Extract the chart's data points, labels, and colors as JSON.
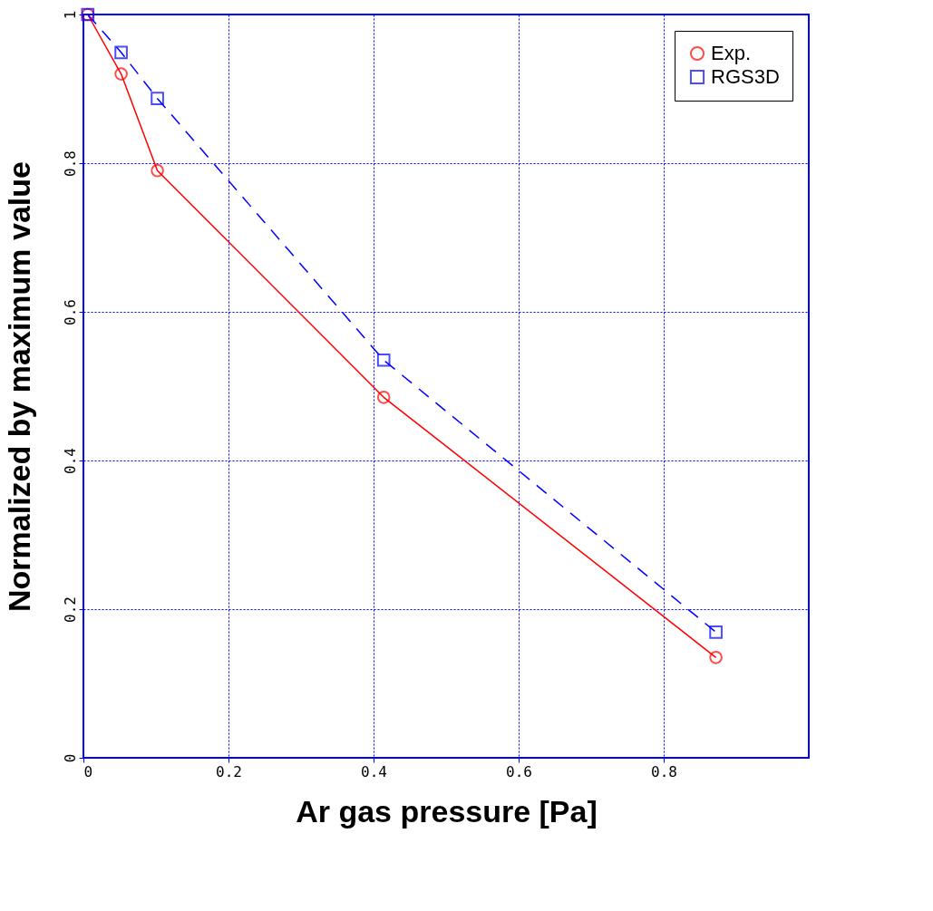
{
  "chart_data": {
    "type": "line",
    "xlabel": "Ar gas pressure [Pa]",
    "ylabel": "Normalized by maximum value",
    "xlim": [
      0,
      1
    ],
    "ylim": [
      0,
      1
    ],
    "xticks": [
      0,
      0.2,
      0.4,
      0.6,
      0.8
    ],
    "yticks": [
      0,
      0.2,
      0.4,
      0.6,
      0.8,
      1
    ],
    "grid": true,
    "legend": "top right",
    "series": [
      {
        "name": "Exp.",
        "color": "#ff0000",
        "marker": "circle",
        "line_style": "solid",
        "x": [
          0.006,
          0.052,
          0.102,
          0.414,
          0.872
        ],
        "values": [
          1.0,
          0.92,
          0.79,
          0.485,
          0.135
        ]
      },
      {
        "name": "RGS3D",
        "color": "#0000ff",
        "marker": "square",
        "line_style": "dashed",
        "x": [
          0.006,
          0.052,
          0.102,
          0.414,
          0.872
        ],
        "values": [
          1.0,
          0.949,
          0.887,
          0.535,
          0.169
        ]
      }
    ]
  }
}
